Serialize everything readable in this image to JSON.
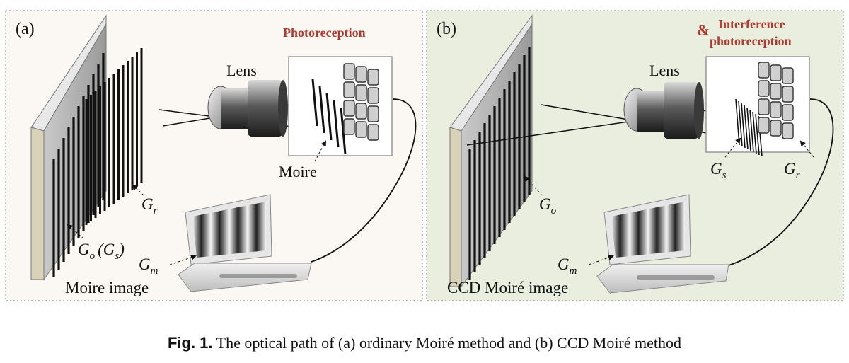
{
  "panel_a": {
    "label": "(a)",
    "photoreception": "Photoreception",
    "lens": "Lens",
    "moire": "Moire",
    "gr": {
      "base": "G",
      "sub": "r"
    },
    "go_gs": {
      "base": "G",
      "sub": "o",
      "mid": "(G",
      "sub2": "s",
      "end": ")"
    },
    "gm": {
      "base": "G",
      "sub": "m"
    },
    "moire_image": "Moire image"
  },
  "panel_b": {
    "label": "(b)",
    "amp": "&",
    "interference": "Interference",
    "photoreception": "photoreception",
    "lens": "Lens",
    "gs": {
      "base": "G",
      "sub": "s"
    },
    "gr": {
      "base": "G",
      "sub": "r"
    },
    "go": {
      "base": "G",
      "sub": "o"
    },
    "gm": {
      "base": "G",
      "sub": "m"
    },
    "ccd_moire_image": "CCD Moiré image"
  },
  "caption": {
    "fig": "Fig. 1.",
    "text": " The optical path of (a) ordinary Moiré method and (b) CCD Moiré method"
  },
  "colors": {
    "panel_a_bg": "#fbf8f3",
    "panel_b_bg": "#e9eedf",
    "accent_red": "#b03a2e"
  }
}
